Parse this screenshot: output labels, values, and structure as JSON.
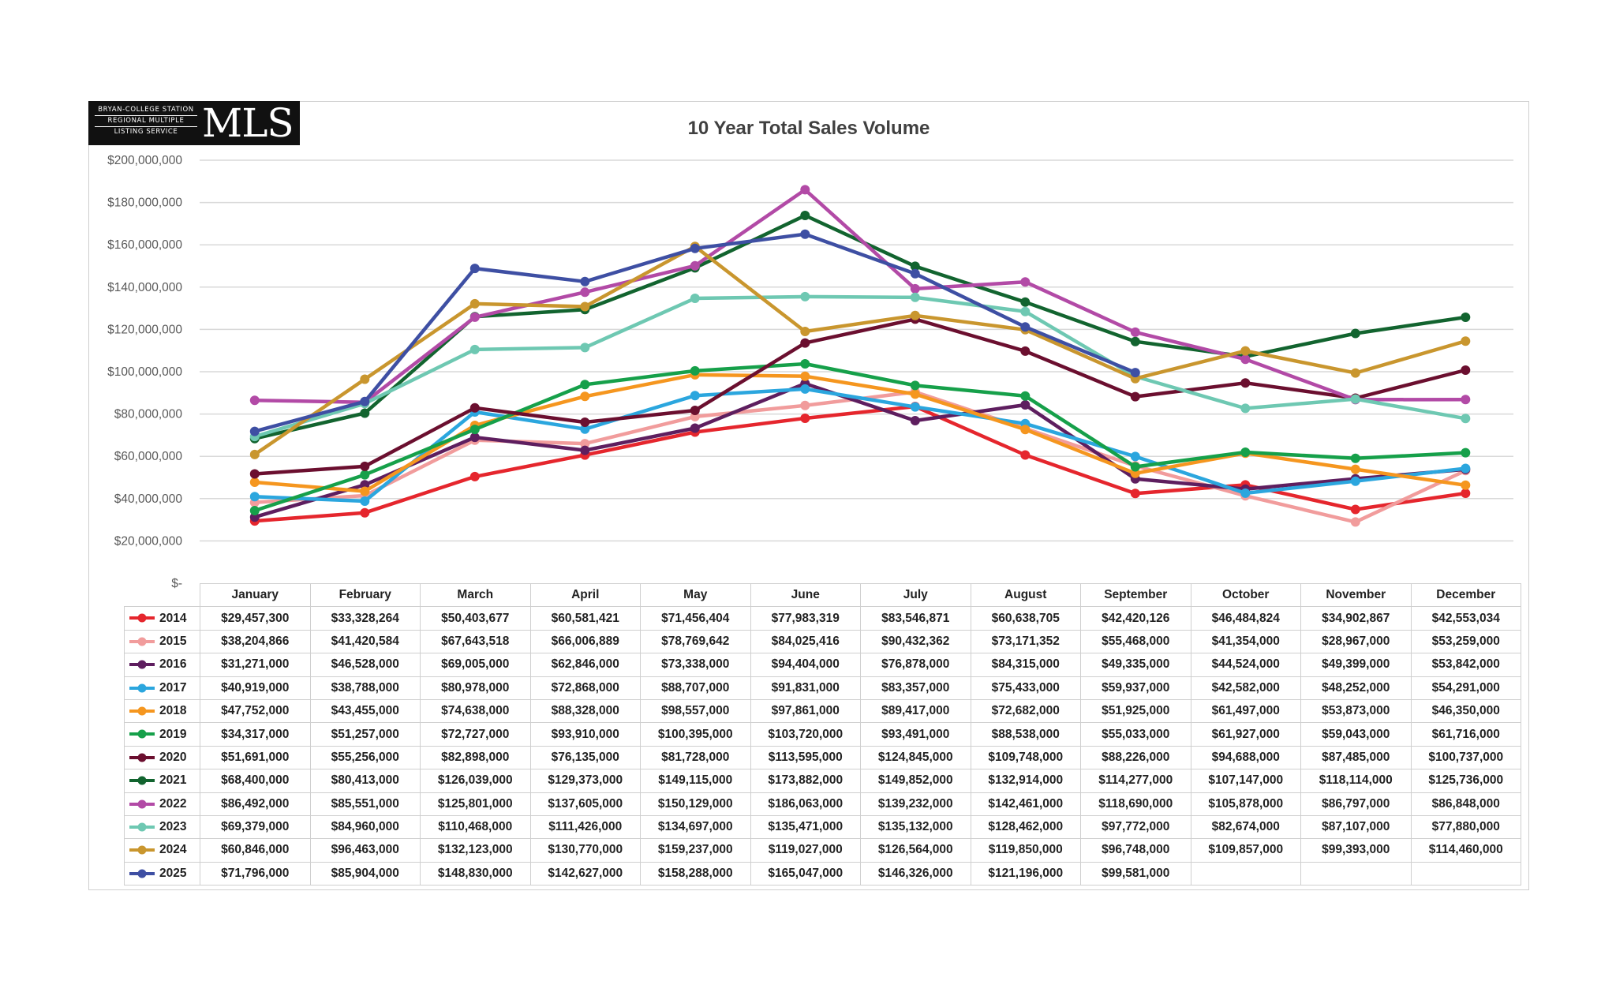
{
  "logo": {
    "line1": "BRYAN-COLLEGE STATION",
    "line2": "REGIONAL MULTIPLE",
    "line3": "LISTING SERVICE",
    "mark": "MLS"
  },
  "chart_data": {
    "type": "line",
    "title": "10 Year Total Sales Volume",
    "xlabel": "",
    "ylabel": "",
    "ylim": [
      0,
      200000000
    ],
    "yticks": [
      0,
      20000000,
      40000000,
      60000000,
      80000000,
      100000000,
      120000000,
      140000000,
      160000000,
      180000000,
      200000000
    ],
    "ytick_labels": [
      "$-",
      "$20,000,000",
      "$40,000,000",
      "$60,000,000",
      "$80,000,000",
      "$100,000,000",
      "$120,000,000",
      "$140,000,000",
      "$160,000,000",
      "$180,000,000",
      "$200,000,000"
    ],
    "grid": true,
    "legend": "data-table",
    "categories": [
      "January",
      "February",
      "March",
      "April",
      "May",
      "June",
      "July",
      "August",
      "September",
      "October",
      "November",
      "December"
    ],
    "series": [
      {
        "name": "2014",
        "color": "#e5262d",
        "values": [
          29457300,
          33328264,
          50403677,
          60581421,
          71456404,
          77983319,
          83546871,
          60638705,
          42420126,
          46484824,
          34902867,
          42553034
        ],
        "labels": [
          "$29,457,300",
          "$33,328,264",
          "$50,403,677",
          "$60,581,421",
          "$71,456,404",
          "$77,983,319",
          "$83,546,871",
          "$60,638,705",
          "$42,420,126",
          "$46,484,824",
          "$34,902,867",
          "$42,553,034"
        ]
      },
      {
        "name": "2015",
        "color": "#f19c9c",
        "values": [
          38204866,
          41420584,
          67643518,
          66006889,
          78769642,
          84025416,
          90432362,
          73171352,
          55468000,
          41354000,
          28967000,
          53259000
        ],
        "labels": [
          "$38,204,866",
          "$41,420,584",
          "$67,643,518",
          "$66,006,889",
          "$78,769,642",
          "$84,025,416",
          "$90,432,362",
          "$73,171,352",
          "$55,468,000",
          "$41,354,000",
          "$28,967,000",
          "$53,259,000"
        ]
      },
      {
        "name": "2016",
        "color": "#5e1e5f",
        "values": [
          31271000,
          46528000,
          69005000,
          62846000,
          73338000,
          94404000,
          76878000,
          84315000,
          49335000,
          44524000,
          49399000,
          53842000
        ],
        "labels": [
          "$31,271,000",
          "$46,528,000",
          "$69,005,000",
          "$62,846,000",
          "$73,338,000",
          "$94,404,000",
          "$76,878,000",
          "$84,315,000",
          "$49,335,000",
          "$44,524,000",
          "$49,399,000",
          "$53,842,000"
        ]
      },
      {
        "name": "2017",
        "color": "#2ba6de",
        "values": [
          40919000,
          38788000,
          80978000,
          72868000,
          88707000,
          91831000,
          83357000,
          75433000,
          59937000,
          42582000,
          48252000,
          54291000
        ],
        "labels": [
          "$40,919,000",
          "$38,788,000",
          "$80,978,000",
          "$72,868,000",
          "$88,707,000",
          "$91,831,000",
          "$83,357,000",
          "$75,433,000",
          "$59,937,000",
          "$42,582,000",
          "$48,252,000",
          "$54,291,000"
        ]
      },
      {
        "name": "2018",
        "color": "#f5961f",
        "values": [
          47752000,
          43455000,
          74638000,
          88328000,
          98557000,
          97861000,
          89417000,
          72682000,
          51925000,
          61497000,
          53873000,
          46350000
        ],
        "labels": [
          "$47,752,000",
          "$43,455,000",
          "$74,638,000",
          "$88,328,000",
          "$98,557,000",
          "$97,861,000",
          "$89,417,000",
          "$72,682,000",
          "$51,925,000",
          "$61,497,000",
          "$53,873,000",
          "$46,350,000"
        ]
      },
      {
        "name": "2019",
        "color": "#16a04a",
        "values": [
          34317000,
          51257000,
          72727000,
          93910000,
          100395000,
          103720000,
          93491000,
          88538000,
          55033000,
          61927000,
          59043000,
          61716000
        ],
        "labels": [
          "$34,317,000",
          "$51,257,000",
          "$72,727,000",
          "$93,910,000",
          "$100,395,000",
          "$103,720,000",
          "$93,491,000",
          "$88,538,000",
          "$55,033,000",
          "$61,927,000",
          "$59,043,000",
          "$61,716,000"
        ]
      },
      {
        "name": "2020",
        "color": "#6b0f2f",
        "values": [
          51691000,
          55256000,
          82898000,
          76135000,
          81728000,
          113595000,
          124845000,
          109748000,
          88226000,
          94688000,
          87485000,
          100737000
        ],
        "labels": [
          "$51,691,000",
          "$55,256,000",
          "$82,898,000",
          "$76,135,000",
          "$81,728,000",
          "$113,595,000",
          "$124,845,000",
          "$109,748,000",
          "$88,226,000",
          "$94,688,000",
          "$87,485,000",
          "$100,737,000"
        ]
      },
      {
        "name": "2021",
        "color": "#12642f",
        "values": [
          68400000,
          80413000,
          126039000,
          129373000,
          149115000,
          173882000,
          149852000,
          132914000,
          114277000,
          107147000,
          118114000,
          125736000
        ],
        "labels": [
          "$68,400,000",
          "$80,413,000",
          "$126,039,000",
          "$129,373,000",
          "$149,115,000",
          "$173,882,000",
          "$149,852,000",
          "$132,914,000",
          "$114,277,000",
          "$107,147,000",
          "$118,114,000",
          "$125,736,000"
        ]
      },
      {
        "name": "2022",
        "color": "#b24aa6",
        "values": [
          86492000,
          85551000,
          125801000,
          137605000,
          150129000,
          186063000,
          139232000,
          142461000,
          118690000,
          105878000,
          86797000,
          86848000
        ],
        "labels": [
          "$86,492,000",
          "$85,551,000",
          "$125,801,000",
          "$137,605,000",
          "$150,129,000",
          "$186,063,000",
          "$139,232,000",
          "$142,461,000",
          "$118,690,000",
          "$105,878,000",
          "$86,797,000",
          "$86,848,000"
        ]
      },
      {
        "name": "2023",
        "color": "#6ec8b2",
        "values": [
          69379000,
          84960000,
          110468000,
          111426000,
          134697000,
          135471000,
          135132000,
          128462000,
          97772000,
          82674000,
          87107000,
          77880000
        ],
        "labels": [
          "$69,379,000",
          "$84,960,000",
          "$110,468,000",
          "$111,426,000",
          "$134,697,000",
          "$135,471,000",
          "$135,132,000",
          "$128,462,000",
          "$97,772,000",
          "$82,674,000",
          "$87,107,000",
          "$77,880,000"
        ]
      },
      {
        "name": "2024",
        "color": "#c9962e",
        "values": [
          60846000,
          96463000,
          132123000,
          130770000,
          159237000,
          119027000,
          126564000,
          119850000,
          96748000,
          109857000,
          99393000,
          114460000
        ],
        "labels": [
          "$60,846,000",
          "$96,463,000",
          "$132,123,000",
          "$130,770,000",
          "$159,237,000",
          "$119,027,000",
          "$126,564,000",
          "$119,850,000",
          "$96,748,000",
          "$109,857,000",
          "$99,393,000",
          "$114,460,000"
        ]
      },
      {
        "name": "2025",
        "color": "#3e4fa3",
        "values": [
          71796000,
          85904000,
          148830000,
          142627000,
          158288000,
          165047000,
          146326000,
          121196000,
          99581000,
          null,
          null,
          null
        ],
        "labels": [
          "$71,796,000",
          "$85,904,000",
          "$148,830,000",
          "$142,627,000",
          "$158,288,000",
          "$165,047,000",
          "$146,326,000",
          "$121,196,000",
          "$99,581,000",
          "",
          "",
          ""
        ]
      }
    ]
  }
}
